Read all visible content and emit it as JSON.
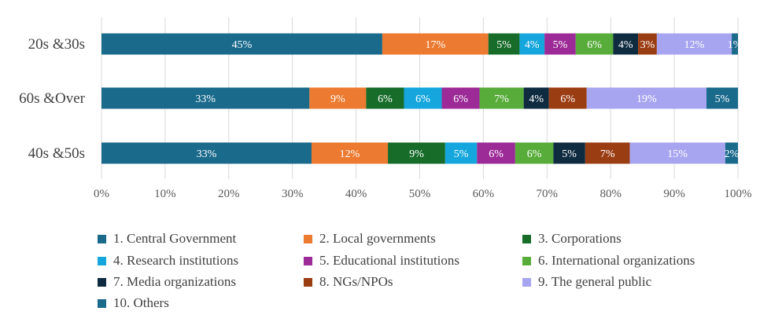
{
  "chart_data": {
    "type": "bar",
    "orientation": "horizontal",
    "stacked": true,
    "percent": true,
    "categories": [
      "20s &30s",
      "60s &Over",
      "40s &50s"
    ],
    "series": [
      {
        "name": "1. Central Government",
        "color": "#1a6a8c",
        "values": [
          45,
          33,
          33
        ],
        "labels": [
          "45%",
          "33%",
          "33%"
        ]
      },
      {
        "name": "2. Local governments",
        "color": "#ec7a30",
        "values": [
          17,
          9,
          12
        ],
        "labels": [
          "17%",
          "9%",
          "12%"
        ]
      },
      {
        "name": "3. Corporations",
        "color": "#176c2a",
        "values": [
          5,
          6,
          9
        ],
        "labels": [
          "5%",
          "6%",
          "9%"
        ]
      },
      {
        "name": "4. Research institutions",
        "color": "#14a6dc",
        "values": [
          4,
          6,
          5
        ],
        "labels": [
          "4%",
          "6%",
          "5%"
        ]
      },
      {
        "name": "5. Educational institutions",
        "color": "#9c2a97",
        "values": [
          5,
          6,
          6
        ],
        "labels": [
          "5%",
          "6%",
          "6%"
        ]
      },
      {
        "name": "6. International organizations",
        "color": "#57ac3a",
        "values": [
          6,
          7,
          6
        ],
        "labels": [
          "6%",
          "7%",
          "6%"
        ]
      },
      {
        "name": "7. Media organizations",
        "color": "#0e2b40",
        "values": [
          4,
          4,
          5
        ],
        "labels": [
          "4%",
          "4%",
          "5%"
        ]
      },
      {
        "name": "8. NGs/NPOs",
        "color": "#9b3d13",
        "values": [
          3,
          6,
          7
        ],
        "labels": [
          "3%",
          "6%",
          "7%"
        ]
      },
      {
        "name": "9. The general public",
        "color": "#a8a5f0",
        "values": [
          12,
          19,
          15
        ],
        "labels": [
          "12%",
          "19%",
          "15%"
        ]
      },
      {
        "name": "10. Others",
        "color": "#1a6a8c",
        "values": [
          1,
          5,
          2
        ],
        "labels": [
          "1%",
          "5%",
          "2%"
        ]
      }
    ],
    "xlim": [
      0,
      100
    ],
    "xticks": [
      "0%",
      "10%",
      "20%",
      "30%",
      "40%",
      "50%",
      "60%",
      "70%",
      "80%",
      "90%",
      "100%"
    ],
    "grid": true,
    "legend_position": "bottom"
  }
}
